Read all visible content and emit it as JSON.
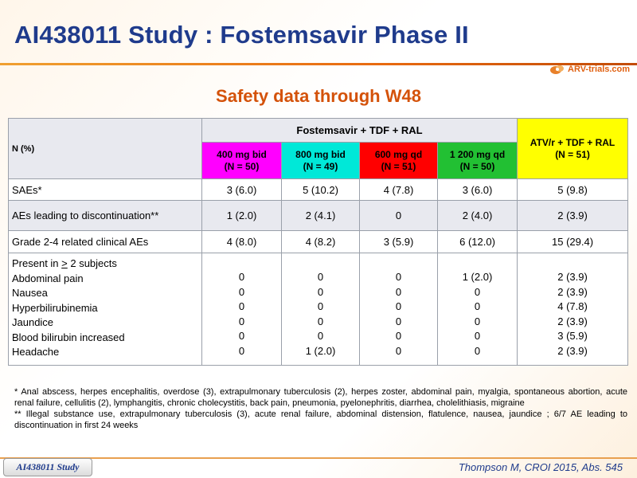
{
  "header": {
    "title": "AI438011 Study : Fostemsavir Phase II",
    "logo_text": "ARV-trials.com",
    "subtitle": "Safety data through W48"
  },
  "table": {
    "n_label": "N (%)",
    "group_label": "Fostemsavir + TDF + RAL",
    "comparator_label": "ATV/r + TDF + RAL",
    "comparator_n": "(N = 51)",
    "arms": [
      {
        "dose": "400 mg bid",
        "n": "(N = 50)",
        "color": "#ff00ff"
      },
      {
        "dose": "800 mg bid",
        "n": "(N = 49)",
        "color": "#00e8d8"
      },
      {
        "dose": "600 mg qd",
        "n": "(N = 51)",
        "color": "#ff0000"
      },
      {
        "dose": "1 200 mg qd",
        "n": "(N = 50)",
        "color": "#22c033"
      }
    ],
    "comparator_color": "#ffff00",
    "rows": [
      {
        "label": "SAEs*",
        "values": [
          "3 (6.0)",
          "5 (10.2)",
          "4 (7.8)",
          "3 (6.0)",
          "5 (9.8)"
        ]
      },
      {
        "label": "AEs leading to discontinuation**",
        "values": [
          "1 (2.0)",
          "2 (4.1)",
          "0",
          "2 (4.0)",
          "2 (3.9)"
        ]
      },
      {
        "label": "Grade 2-4 related clinical AEs",
        "values": [
          "4 (8.0)",
          "4 (8.2)",
          "3 (5.9)",
          "6 (12.0)",
          "15 (29.4)"
        ]
      }
    ],
    "present_block": {
      "heading_prefix": "Present in ",
      "heading_symbol": ">",
      "heading_suffix": " 2 subjects",
      "items": [
        "Abdominal pain",
        "Nausea",
        "Hyperbilirubinemia",
        "Jaundice",
        "Blood bilirubin increased",
        "Headache"
      ],
      "columns": [
        [
          "0",
          "0",
          "0",
          "0",
          "0",
          "0"
        ],
        [
          "0",
          "0",
          "0",
          "0",
          "0",
          "1 (2.0)"
        ],
        [
          "0",
          "0",
          "0",
          "0",
          "0",
          "0"
        ],
        [
          "1 (2.0)",
          "0",
          "0",
          "0",
          "0",
          "0"
        ],
        [
          "2 (3.9)",
          "2 (3.9)",
          "4 (7.8)",
          "2 (3.9)",
          "3 (5.9)",
          "2 (3.9)"
        ]
      ]
    }
  },
  "footnotes": {
    "note1": "* Anal abscess, herpes encephalitis, overdose (3), extrapulmonary tuberculosis (2), herpes zoster, abdominal pain, myalgia, spontaneous abortion, acute renal failure, cellulitis (2), lymphangitis, chronic cholecystitis, back pain, pneumonia, pyelonephritis, diarrhea, cholelithiasis, migraine",
    "note2": "** Illegal substance use, extrapulmonary tuberculosis (3), acute renal failure, abdominal distension, flatulence, nausea, jaundice ; 6/7 AE leading to discontinuation in first 24 weeks"
  },
  "footer": {
    "study_tag": "AI438011 Study",
    "citation": "Thompson M, CROI 2015, Abs. 545"
  }
}
